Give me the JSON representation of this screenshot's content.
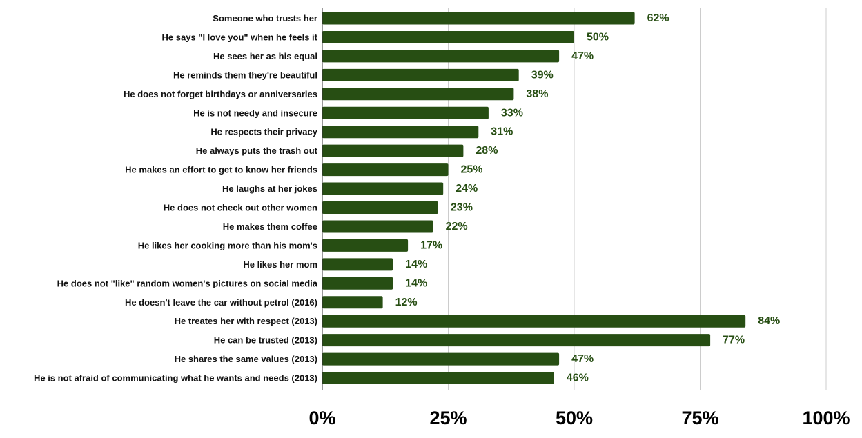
{
  "chart_data": {
    "type": "bar",
    "orientation": "horizontal",
    "title": "",
    "xlabel": "",
    "ylabel": "",
    "xlim": [
      0,
      100
    ],
    "x_ticks": [
      0,
      25,
      50,
      75,
      100
    ],
    "x_tick_labels": [
      "0%",
      "25%",
      "50%",
      "75%",
      "100%"
    ],
    "grid": "vertical",
    "legend": "none",
    "bar_color": "#274e13",
    "label_color": "#274e13",
    "categories": [
      "Someone who trusts her",
      "He says \"I love you\" when he feels it",
      "He sees her as his equal",
      "He reminds them they're beautiful",
      "He does not forget birthdays or anniversaries",
      "He is not needy and insecure",
      "He respects their privacy",
      "He always puts the trash out",
      "He makes an effort to get to know her friends",
      "He laughs at her jokes",
      "He does not check out other women",
      "He makes them coffee",
      "He likes her cooking more than his mom's",
      "He likes her mom",
      "He does not \"like\" random women's pictures on social media",
      "He doesn't leave the car without petrol (2016)",
      "He treates her with respect (2013)",
      "He can be trusted (2013)",
      "He shares the same values (2013)",
      "He is not afraid of communicating what he wants and needs (2013)"
    ],
    "values": [
      62,
      50,
      47,
      39,
      38,
      33,
      31,
      28,
      25,
      24,
      23,
      22,
      17,
      14,
      14,
      12,
      84,
      77,
      47,
      46
    ],
    "value_labels": [
      "62%",
      "50%",
      "47%",
      "39%",
      "38%",
      "33%",
      "31%",
      "28%",
      "25%",
      "24%",
      "23%",
      "22%",
      "17%",
      "14%",
      "14%",
      "12%",
      "84%",
      "77%",
      "47%",
      "46%"
    ]
  }
}
